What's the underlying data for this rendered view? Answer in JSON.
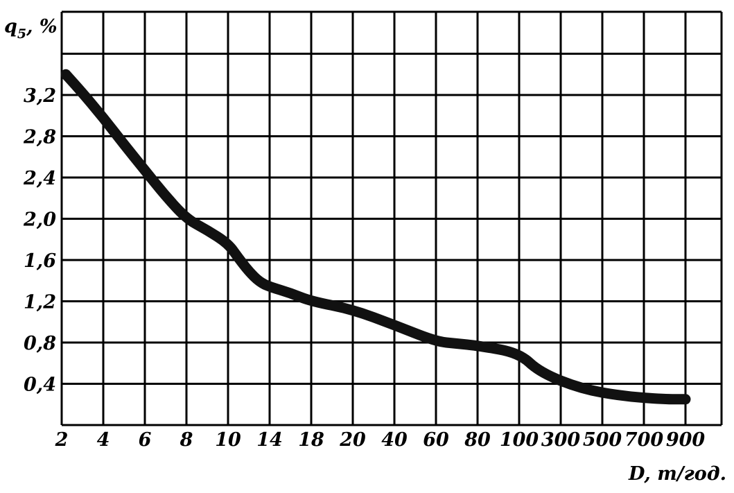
{
  "chart_data": {
    "type": "line",
    "ylabel": "q",
    "ylabel_sub": "5",
    "ylabel_unit": ", %",
    "xlabel": "D, т/год.",
    "categories": [
      "2",
      "4",
      "6",
      "8",
      "10",
      "14",
      "18",
      "20",
      "40",
      "60",
      "80",
      "100",
      "300",
      "500",
      "700",
      "900"
    ],
    "y_ticks": [
      "0,4",
      "0,8",
      "1,2",
      "1,6",
      "2,0",
      "2,4",
      "2,8",
      "3,2"
    ],
    "ylim": [
      0,
      3.6
    ],
    "grid": true,
    "series": [
      {
        "x": [
          2.2,
          3,
          4,
          5,
          6,
          7,
          8,
          9,
          10,
          11,
          12,
          13,
          14,
          16,
          18,
          20,
          40,
          60,
          70,
          80,
          100,
          200,
          400,
          600,
          800,
          900
        ],
        "values": [
          3.4,
          3.22,
          2.98,
          2.72,
          2.47,
          2.22,
          2.0,
          1.89,
          1.76,
          1.62,
          1.49,
          1.39,
          1.34,
          1.28,
          1.2,
          1.12,
          0.97,
          0.81,
          0.79,
          0.77,
          0.7,
          0.51,
          0.35,
          0.28,
          0.25,
          0.25
        ]
      }
    ]
  }
}
